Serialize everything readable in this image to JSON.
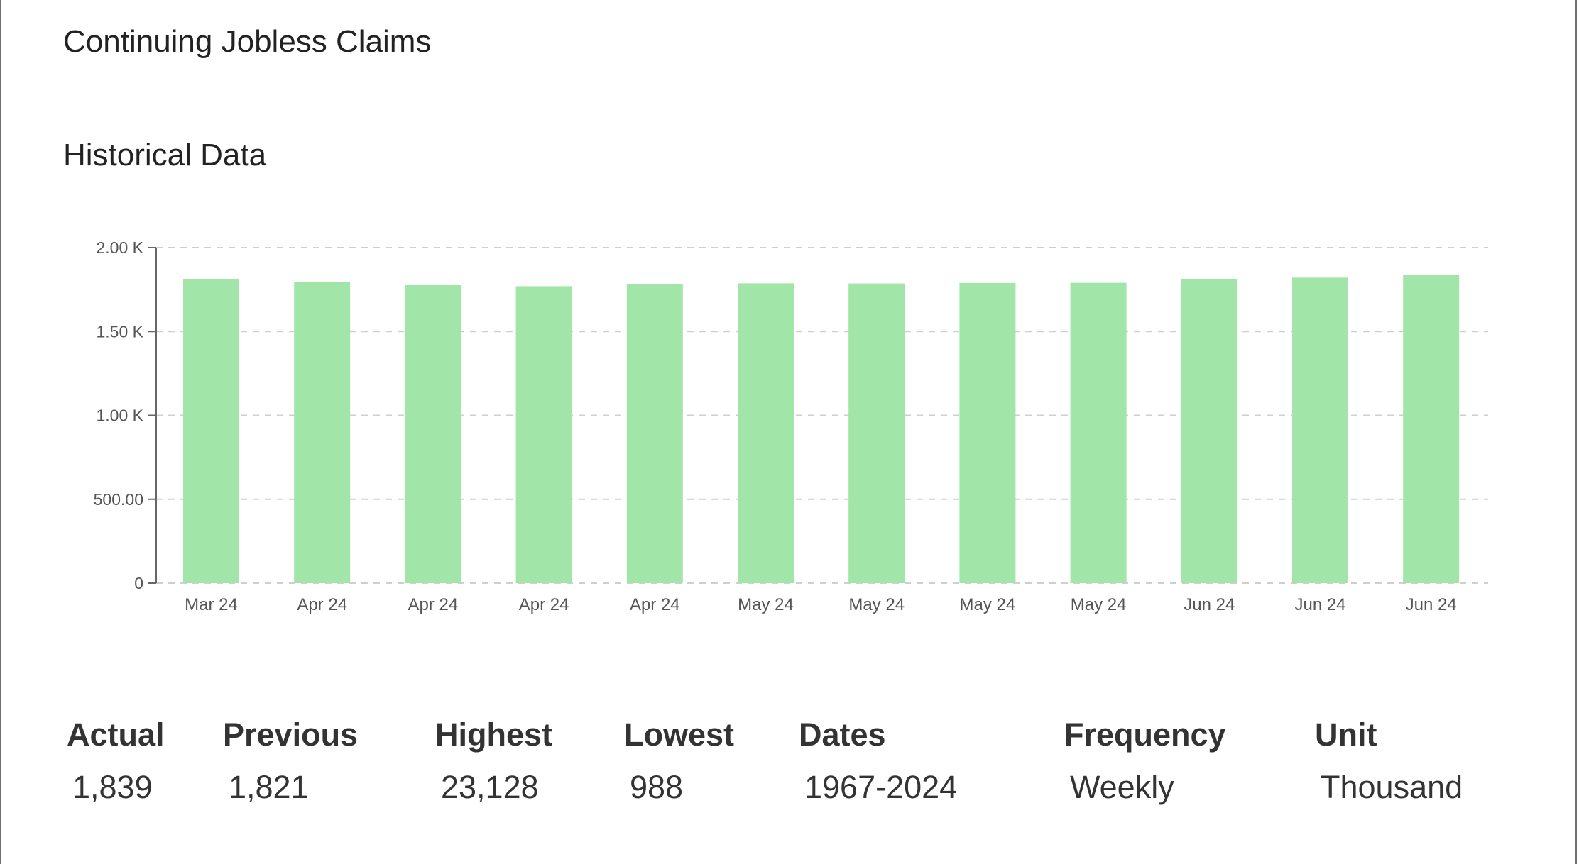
{
  "page": {
    "title": "Continuing Jobless Claims",
    "section_title": "Historical Data"
  },
  "chart_data": {
    "type": "bar",
    "categories": [
      "Mar 24",
      "Apr 24",
      "Apr 24",
      "Apr 24",
      "Apr 24",
      "May 24",
      "May 24",
      "May 24",
      "May 24",
      "Jun 24",
      "Jun 24",
      "Jun 24"
    ],
    "values": [
      1812,
      1795,
      1776,
      1770,
      1782,
      1787,
      1786,
      1789,
      1790,
      1814,
      1821,
      1839
    ],
    "yticks": [
      0,
      500,
      1000,
      1500,
      2000
    ],
    "ytick_labels": [
      "0",
      "500.00",
      "1.00 K",
      "1.50 K",
      "2.00 K"
    ],
    "ylim": [
      0,
      2000
    ],
    "grid": true,
    "bar_color": "#a1e5a8",
    "title": "",
    "xlabel": "",
    "ylabel": ""
  },
  "stats": [
    {
      "label": "Actual",
      "value": "1,839"
    },
    {
      "label": "Previous",
      "value": "1,821"
    },
    {
      "label": "Highest",
      "value": "23,128"
    },
    {
      "label": "Lowest",
      "value": "988"
    },
    {
      "label": "Dates",
      "value": "1967-2024"
    },
    {
      "label": "Frequency",
      "value": "Weekly"
    },
    {
      "label": "Unit",
      "value": "Thousand"
    }
  ]
}
